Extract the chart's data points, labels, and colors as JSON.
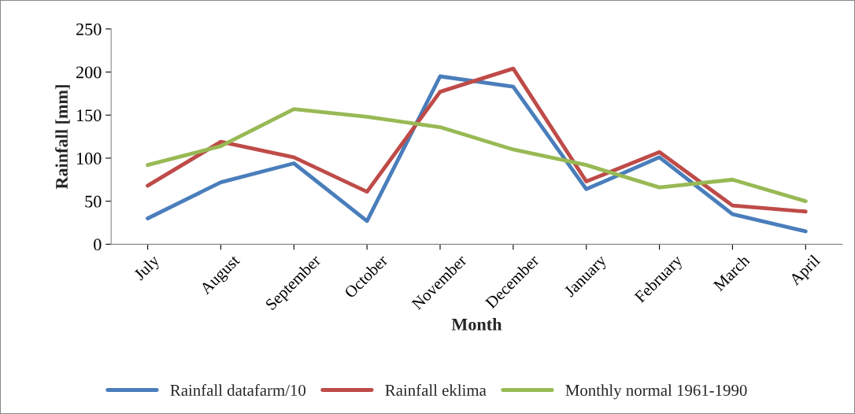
{
  "chart_data": {
    "type": "line",
    "xlabel": "Month",
    "ylabel": "Rainfall [mm]",
    "categories": [
      "July",
      "August",
      "September",
      "October",
      "November",
      "December",
      "January",
      "February",
      "March",
      "April"
    ],
    "series": [
      {
        "name": "Rainfall datafarm/10",
        "color": "#4a7ebb",
        "values": [
          30,
          72,
          94,
          27,
          195,
          183,
          64,
          101,
          35,
          15
        ]
      },
      {
        "name": "Rainfall eklima",
        "color": "#be4b48",
        "values": [
          68,
          119,
          101,
          61,
          177,
          204,
          73,
          107,
          45,
          38
        ]
      },
      {
        "name": "Monthly normal 1961-1990",
        "color": "#98b954",
        "values": [
          92,
          114,
          157,
          148,
          136,
          110,
          92,
          66,
          75,
          50
        ]
      }
    ],
    "ylim": [
      0,
      250
    ],
    "yticks": [
      0,
      50,
      100,
      150,
      200,
      250
    ],
    "grid": false,
    "legend": "bottom",
    "marker": "none",
    "line_style": "solid"
  }
}
